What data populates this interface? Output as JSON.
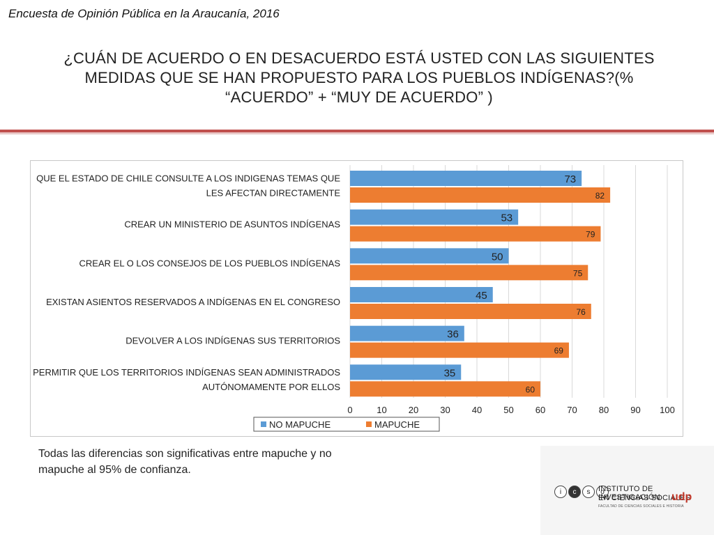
{
  "header": {
    "subtitle": "Encuesta de Opinión Pública en la Araucanía, 2016",
    "title": "¿CUÁN DE ACUERDO O EN DESACUERDO ESTÁ USTED CON LAS SIGUIENTES MEDIDAS QUE SE HAN PROPUESTO PARA LOS PUEBLOS INDÍGENAS?(% “ACUERDO” + “MUY DE ACUERDO” )"
  },
  "chart_data": {
    "type": "bar",
    "orientation": "horizontal",
    "categories": [
      [
        "QUE EL ESTADO DE CHILE CONSULTE A LOS INDIGENAS TEMAS QUE",
        "LES AFECTAN DIRECTAMENTE"
      ],
      [
        "CREAR UN MINISTERIO DE ASUNTOS INDÍGENAS"
      ],
      [
        "CREAR EL O LOS CONSEJOS DE LOS PUEBLOS INDÍGENAS"
      ],
      [
        "EXISTAN ASIENTOS RESERVADOS A INDÍGENAS EN EL CONGRESO"
      ],
      [
        "DEVOLVER A LOS INDÍGENAS SUS TERRITORIOS"
      ],
      [
        "PERMITIR QUE LOS TERRITORIOS INDÍGENAS SEAN ADMINISTRADOS",
        "AUTÓNOMAMENTE POR ELLOS"
      ]
    ],
    "series": [
      {
        "name": "NO MAPUCHE",
        "color": "#5b9bd5",
        "values": [
          73,
          53,
          50,
          45,
          36,
          35
        ]
      },
      {
        "name": "MAPUCHE",
        "color": "#ed7d31",
        "values": [
          82,
          79,
          75,
          76,
          69,
          60
        ]
      }
    ],
    "xlim": [
      0,
      100
    ],
    "xticks": [
      0,
      10,
      20,
      30,
      40,
      50,
      60,
      70,
      80,
      90,
      100
    ],
    "grid": true,
    "legend": "bottom"
  },
  "footer": {
    "note": "Todas las diferencias son significativas entre mapuche y no mapuche al 95% de confianza."
  },
  "logo": {
    "circles": [
      "i",
      "c",
      "s",
      "o"
    ],
    "line1": "INSTITUTO DE INVESTIGACIÓN",
    "line2": "EN CIENCIAS SOCIALES",
    "brand": "udp",
    "line3": "FACULTAD DE CIENCIAS SOCIALES E HISTORIA"
  }
}
